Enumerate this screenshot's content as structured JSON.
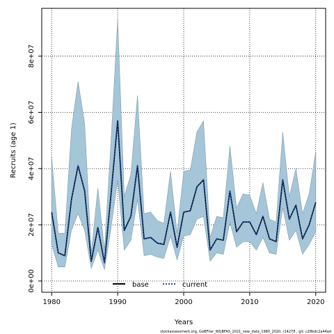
{
  "chart_data": {
    "type": "line",
    "xlabel": "Years",
    "ylabel": "Recruits (age 1)",
    "xlim": [
      1978.5,
      2021.5
    ],
    "ylim": [
      -4000000,
      97000000
    ],
    "x_ticks": [
      1980,
      1990,
      2000,
      2010,
      2020
    ],
    "y_ticks": [
      0,
      20000000,
      40000000,
      60000000,
      80000000
    ],
    "y_tick_labels": [
      "0e+00",
      "2e+07",
      "4e+07",
      "6e+07",
      "8e+07"
    ],
    "grid": true,
    "legend_position": "bottom-center",
    "years": [
      1980,
      1981,
      1982,
      1983,
      1984,
      1985,
      1986,
      1987,
      1988,
      1989,
      1990,
      1991,
      1992,
      1993,
      1994,
      1995,
      1996,
      1997,
      1998,
      1999,
      2000,
      2001,
      2002,
      2003,
      2004,
      2005,
      2006,
      2007,
      2008,
      2009,
      2010,
      2011,
      2012,
      2013,
      2014,
      2015,
      2016,
      2017,
      2018,
      2019,
      2020
    ],
    "band": {
      "color": "#a5c6d8",
      "stroke": "#7e9aaa",
      "upper": [
        44000000,
        17000000,
        17000000,
        54000000,
        71000000,
        56000000,
        10000000,
        33000000,
        11000000,
        50000000,
        93000000,
        30000000,
        38000000,
        66000000,
        24000000,
        24500000,
        21500000,
        20500000,
        39000000,
        17000000,
        39000000,
        39500000,
        53000000,
        57000000,
        15500000,
        23000000,
        22500000,
        48000000,
        26000000,
        31000000,
        30500000,
        24000000,
        35000000,
        22000000,
        21000000,
        53000000,
        30000000,
        40000000,
        24000000,
        31000000,
        46000000
      ],
      "lower": [
        13000000,
        5000000,
        5000000,
        18000000,
        24000000,
        18000000,
        4500000,
        11000000,
        4000000,
        19000000,
        36000000,
        11000000,
        14500000,
        29000000,
        9000000,
        9500000,
        8500000,
        8000000,
        16000000,
        7500000,
        16000000,
        16500000,
        22000000,
        23000000,
        7000000,
        10000000,
        9500000,
        21000000,
        12000000,
        14000000,
        14000000,
        11000000,
        15500000,
        10000000,
        9500000,
        26000000,
        14500000,
        18000000,
        9500000,
        13000000,
        17500000
      ]
    },
    "series": [
      {
        "name": "base",
        "style": "solid",
        "color": "#000000",
        "values": [
          24500000,
          10000000,
          9000000,
          29000000,
          41000000,
          32000000,
          7000000,
          19000000,
          6500000,
          31000000,
          57000000,
          18000000,
          23000000,
          41000000,
          15000000,
          15500000,
          13500000,
          13000000,
          24500000,
          12000000,
          24500000,
          25000000,
          33500000,
          36000000,
          11000000,
          15000000,
          14500000,
          32000000,
          17500000,
          21000000,
          21000000,
          16500000,
          23000000,
          15000000,
          14000000,
          36000000,
          22000000,
          27000000,
          15000000,
          20000000,
          28000000
        ]
      },
      {
        "name": "current",
        "style": "dotted",
        "color": "#1f4ea0",
        "values": [
          24500000,
          10000000,
          9000000,
          29000000,
          41000000,
          32000000,
          7000000,
          19000000,
          6500000,
          31000000,
          57000000,
          18000000,
          23000000,
          41000000,
          15000000,
          15500000,
          13500000,
          13000000,
          24500000,
          12000000,
          24500000,
          25000000,
          33500000,
          36000000,
          11000000,
          15000000,
          14500000,
          32000000,
          17500000,
          21000000,
          21000000,
          16500000,
          23000000,
          15000000,
          14000000,
          36000000,
          22000000,
          27000000,
          15000000,
          20000000,
          28000000
        ]
      }
    ],
    "legend": [
      "base",
      "current"
    ]
  },
  "footer_text": "stockassessment.org, GoBFlier_WGBFAS_2021_new_data_1980_2020, r14278 , git: c28bdc2a44ad"
}
